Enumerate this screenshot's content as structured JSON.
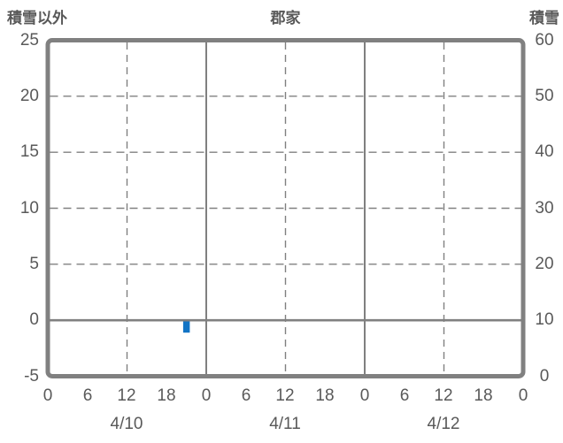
{
  "header": {
    "left_label": "積雪以外",
    "title": "郡家",
    "right_label": "積雪"
  },
  "colors": {
    "background": "#FFFFFF",
    "frame": "#808080",
    "gridline": "#808080",
    "axis_text": "#595959",
    "bar": "#1274C5"
  },
  "chart_data": {
    "type": "bar",
    "title": "郡家",
    "left_axis": {
      "label": "積雪以外",
      "ticks": [
        25,
        20,
        15,
        10,
        5,
        0,
        -5
      ],
      "range": [
        -5,
        25
      ]
    },
    "right_axis": {
      "label": "積雪",
      "ticks": [
        60,
        50,
        40,
        30,
        20,
        10,
        0
      ],
      "range": [
        0,
        60
      ]
    },
    "x_axis": {
      "hour_ticks": [
        "0",
        "6",
        "12",
        "18",
        "0",
        "6",
        "12",
        "18",
        "0",
        "6",
        "12",
        "18",
        "0"
      ],
      "day_labels": [
        "4/10",
        "4/11",
        "4/12"
      ],
      "range_hours": [
        0,
        72
      ]
    },
    "grid": {
      "horizontal_dashed_values": [
        20,
        15,
        10,
        5
      ],
      "zero_line_value": 0,
      "vertical_dashed_hours": [
        12,
        36,
        60
      ],
      "vertical_solid_hours": [
        24,
        48
      ]
    },
    "series": [
      {
        "name": "積雪以外",
        "type": "bar",
        "color": "#1274C5",
        "points": [
          {
            "day": "4/10",
            "hour": 21,
            "value": -1
          }
        ]
      }
    ]
  }
}
